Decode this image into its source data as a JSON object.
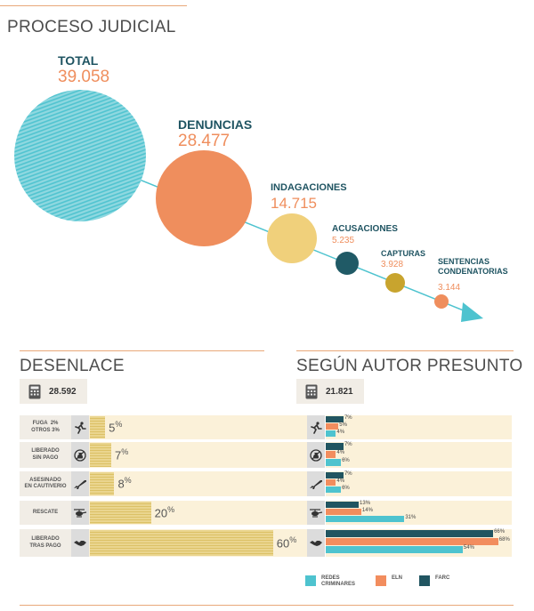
{
  "colors": {
    "teal_light": "#4ec3cf",
    "salmon": "#ef8e5d",
    "yellow": "#f0d07b",
    "navy": "#205a66",
    "olive": "#c8a42e",
    "bar_gold": "#e3c874",
    "row_bg": "#fbf1d9",
    "redes": "#4ec3cf",
    "eln": "#f28d5e",
    "farc": "#215561"
  },
  "proceso": {
    "title": "PROCESO JUDICIAL",
    "stages": [
      {
        "name": "TOTAL",
        "value": "39.058"
      },
      {
        "name": "DENUNCIAS",
        "value": "28.477"
      },
      {
        "name": "INDAGACIONES",
        "value": "14.715"
      },
      {
        "name": "ACUSACIONES",
        "value": "5.235"
      },
      {
        "name": "CAPTURAS",
        "value": "3.928"
      },
      {
        "name": "SENTENCIAS\nCONDENATORIAS",
        "value": "3.144"
      }
    ]
  },
  "desenlace": {
    "title": "DESENLACE",
    "count": "28.592",
    "count_icon": "calculator-icon"
  },
  "autor": {
    "title": "SEGÚN AUTOR PRESUNTO",
    "count": "21.821",
    "count_icon": "calculator-icon"
  },
  "rows": [
    {
      "label": "FUGA  2%\nOTROS 3%",
      "icon": "running-person-icon",
      "pct": 5,
      "pct_label": "5"
    },
    {
      "label": "LIBERADO\nSIN PAGO",
      "icon": "money-bag-crossed-icon",
      "pct": 7,
      "pct_label": "7"
    },
    {
      "label": "ASESINADO\nEN CAUTIVERIO",
      "icon": "rifle-icon",
      "pct": 8,
      "pct_label": "8"
    },
    {
      "label": "RESCATE",
      "icon": "helicopter-icon",
      "pct": 20,
      "pct_label": "20"
    },
    {
      "label": "LIBERADO\nTRAS PAGO",
      "icon": "handshake-icon",
      "pct": 60,
      "pct_label": "60"
    }
  ],
  "chart_data": [
    {
      "type": "bubble-funnel",
      "title": "PROCESO JUDICIAL",
      "categories": [
        "TOTAL",
        "DENUNCIAS",
        "INDAGACIONES",
        "ACUSACIONES",
        "CAPTURAS",
        "SENTENCIAS CONDENATORIAS"
      ],
      "values": [
        39058,
        28477,
        14715,
        5235,
        3928,
        3144
      ]
    },
    {
      "type": "bar",
      "title": "DESENLACE",
      "total": 28592,
      "unit": "%",
      "categories": [
        "FUGA 2% OTROS 3%",
        "LIBERADO SIN PAGO",
        "ASESINADO EN CAUTIVERIO",
        "RESCATE",
        "LIBERADO TRAS PAGO"
      ],
      "values": [
        5,
        7,
        8,
        20,
        60
      ],
      "xlim": [
        0,
        100
      ]
    },
    {
      "type": "bar",
      "title": "SEGÚN AUTOR PRESUNTO",
      "total": 21821,
      "unit": "%",
      "categories": [
        "FUGA 2% OTROS 3%",
        "LIBERADO SIN PAGO",
        "ASESINADO EN CAUTIVERIO",
        "RESCATE",
        "LIBERADO TRAS PAGO"
      ],
      "series": [
        {
          "name": "FARC",
          "values": [
            7,
            7,
            7,
            13,
            66
          ]
        },
        {
          "name": "ELN",
          "values": [
            5,
            4,
            4,
            14,
            68
          ]
        },
        {
          "name": "REDES CRIMINARES",
          "values": [
            4,
            6,
            6,
            31,
            54
          ]
        }
      ],
      "xlim": [
        0,
        100
      ],
      "legend": [
        "REDES CRIMINARES",
        "ELN",
        "FARC"
      ],
      "legend_position": "bottom"
    }
  ]
}
